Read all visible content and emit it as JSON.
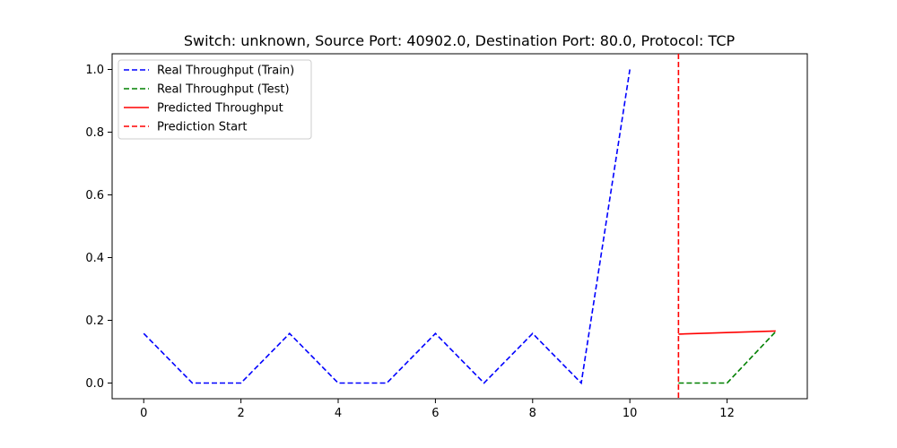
{
  "chart_data": {
    "type": "line",
    "title": "Switch: unknown, Source Port: 40902.0, Destination Port: 80.0, Protocol: TCP",
    "xlabel": "",
    "ylabel": "",
    "xlim": [
      -0.65,
      13.65
    ],
    "ylim": [
      -0.05,
      1.05
    ],
    "xticks": [
      0,
      2,
      4,
      6,
      8,
      10,
      12
    ],
    "yticks": [
      0.0,
      0.2,
      0.4,
      0.6,
      0.8,
      1.0
    ],
    "xtick_labels": [
      "0",
      "2",
      "4",
      "6",
      "8",
      "10",
      "12"
    ],
    "ytick_labels": [
      "0.0",
      "0.2",
      "0.4",
      "0.6",
      "0.8",
      "1.0"
    ],
    "grid": false,
    "legend_position": "top-left",
    "series": [
      {
        "name": "Real Throughput (Train)",
        "color": "#0000ff",
        "style": "dashed",
        "x": [
          0,
          1,
          2,
          3,
          4,
          5,
          6,
          7,
          8,
          9,
          10
        ],
        "y": [
          0.158,
          0.0,
          0.0,
          0.158,
          0.0,
          0.0,
          0.158,
          0.0,
          0.158,
          0.0,
          1.0
        ]
      },
      {
        "name": "Real Throughput (Test)",
        "color": "#008000",
        "style": "dashed",
        "x": [
          11,
          12,
          13
        ],
        "y": [
          0.0,
          0.0,
          0.164
        ]
      },
      {
        "name": "Predicted Throughput",
        "color": "#ff0000",
        "style": "solid",
        "x": [
          11,
          13
        ],
        "y": [
          0.156,
          0.166
        ]
      }
    ],
    "vlines": [
      {
        "name": "Prediction Start",
        "x": 11,
        "color": "#ff0000",
        "style": "dashed"
      }
    ],
    "legend": [
      {
        "label": "Real Throughput (Train)",
        "color": "#0000ff",
        "style": "dashed"
      },
      {
        "label": "Real Throughput (Test)",
        "color": "#008000",
        "style": "dashed"
      },
      {
        "label": "Predicted Throughput",
        "color": "#ff0000",
        "style": "solid"
      },
      {
        "label": "Prediction Start",
        "color": "#ff0000",
        "style": "dashed"
      }
    ]
  }
}
